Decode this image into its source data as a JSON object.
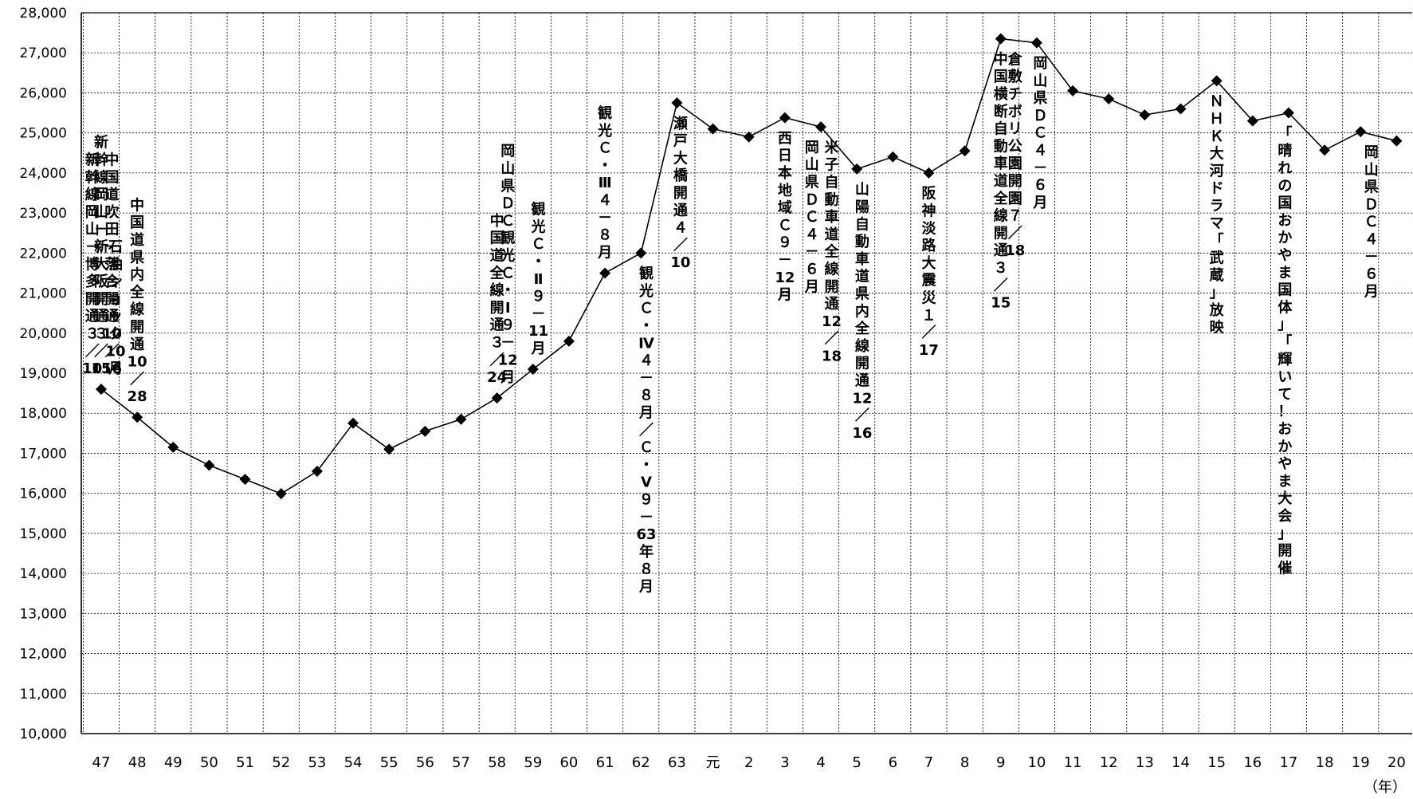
{
  "chart_data": {
    "type": "line",
    "title": "",
    "xlabel": "",
    "ylabel": "",
    "x_unit_label": "（年）",
    "ylim": [
      10000,
      28000
    ],
    "yticks": [
      "10,000",
      "11,000",
      "12,000",
      "13,000",
      "14,000",
      "15,000",
      "16,000",
      "17,000",
      "18,000",
      "19,000",
      "20,000",
      "21,000",
      "22,000",
      "23,000",
      "24,000",
      "25,000",
      "26,000",
      "27,000",
      "28,000"
    ],
    "grid": true,
    "categories": [
      "47",
      "48",
      "49",
      "50",
      "51",
      "52",
      "53",
      "54",
      "55",
      "56",
      "57",
      "58",
      "59",
      "60",
      "61",
      "62",
      "63",
      "元",
      "2",
      "3",
      "4",
      "5",
      "6",
      "7",
      "8",
      "9",
      "10",
      "11",
      "12",
      "13",
      "14",
      "15",
      "16",
      "17",
      "18",
      "19",
      "20"
    ],
    "series": [
      {
        "values": [
          18600,
          17900,
          17150,
          16700,
          16350,
          15990,
          16550,
          17750,
          17100,
          17550,
          17850,
          18380,
          19100,
          19800,
          21500,
          22000,
          25750,
          25100,
          24900,
          25380,
          25150,
          24100,
          24400,
          24000,
          24550,
          27350,
          27250,
          26050,
          25850,
          25450,
          25600,
          26300,
          25300,
          25500,
          24570,
          25030,
          24800
        ]
      }
    ],
    "annotations": [
      {
        "idx": 0,
        "anchor": 0,
        "text": "新幹線岡山－新大阪開通３／15"
      },
      {
        "idx": 1,
        "anchor": 0.4,
        "text": "石油ショック10月"
      },
      {
        "idx": 2,
        "anchor": -0.25,
        "text": "新幹線岡山－博多開通３／10"
      },
      {
        "idx": 3,
        "anchor": 0.3,
        "text": "中国道吹田－落合開通10／16"
      },
      {
        "idx": 4,
        "anchor": 1,
        "text": "中国道県内全線開通10／28"
      },
      {
        "idx": 5,
        "anchor": 11,
        "text": "中国道全線開通３／24"
      },
      {
        "idx": 6,
        "anchor": 11.3,
        "text": "岡山県ＤＣ観光Ｃ・Ⅰ９－12月"
      },
      {
        "idx": 7,
        "anchor": 12.15,
        "text": "観光Ｃ・Ⅱ９－11月"
      },
      {
        "idx": 8,
        "anchor": 14,
        "text": "観光Ｃ・Ⅲ４－８月"
      },
      {
        "idx": 9,
        "anchor": 15.15,
        "text": "観光Ｃ・Ⅳ４－８月／Ｃ・Ⅴ９－63年８月"
      },
      {
        "idx": 10,
        "anchor": 16.1,
        "text": "瀬戸大橋開通４／10"
      },
      {
        "idx": 11,
        "anchor": 19,
        "text": "西日本地域Ｃ９－12月"
      },
      {
        "idx": 12,
        "anchor": 19.75,
        "text": "岡山県ＤＣ４－６月"
      },
      {
        "idx": 13,
        "anchor": 20.3,
        "text": "米子自動車道全線開通12／18"
      },
      {
        "idx": 14,
        "anchor": 21.15,
        "text": "山陽自動車道県内全線開通12／16"
      },
      {
        "idx": 15,
        "anchor": 23,
        "text": "阪神淡路大震災１／17"
      },
      {
        "idx": 16,
        "anchor": 25,
        "text": "中国横断自動車道全線開通３／15"
      },
      {
        "idx": 17,
        "anchor": 25.4,
        "text": "倉敷チボリ公園開園７／18"
      },
      {
        "idx": 18,
        "anchor": 26.1,
        "text": "岡山県ＤＣ４－６月"
      },
      {
        "idx": 19,
        "anchor": 31,
        "text": "ＮＨＫ大河ドラマ「武蔵」放映"
      },
      {
        "idx": 20,
        "anchor": 32.9,
        "text": "「晴れの国おかやま国体」「輝いて！おかやま大会」開催"
      },
      {
        "idx": 21,
        "anchor": 35.3,
        "text": "岡山県ＤＣ４－６月"
      }
    ]
  }
}
